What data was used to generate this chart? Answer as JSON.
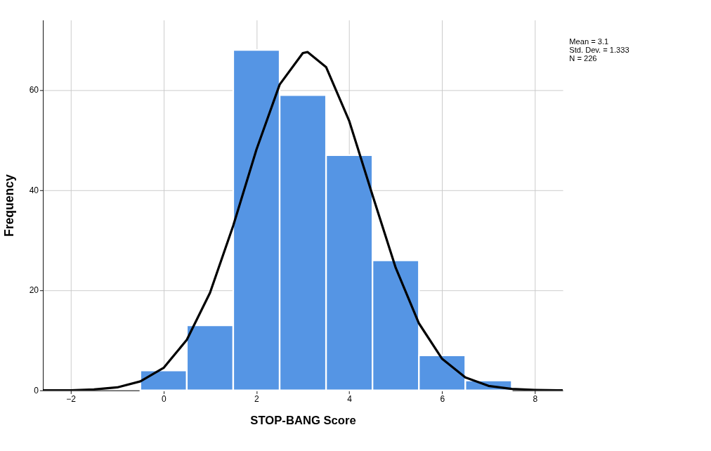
{
  "chart_data": {
    "type": "histogram",
    "xlabel": "STOP-BANG Score",
    "ylabel": "Frequency",
    "bins": [
      -0.5,
      0.5,
      1.5,
      2.5,
      3.5,
      4.5,
      5.5,
      6.5,
      7.5
    ],
    "values": [
      4,
      13,
      68,
      59,
      47,
      26,
      7,
      2
    ],
    "color": "#5595e4",
    "series": [
      {
        "type": "line",
        "color": "#000000",
        "x": [
          -2.6,
          -2.5,
          -2,
          -1.5,
          -1,
          -0.5,
          0,
          0.5,
          1,
          1.5,
          2,
          2.5,
          3,
          3.1,
          3.5,
          4,
          4.5,
          5,
          5.5,
          6,
          6.5,
          7,
          7.5,
          8,
          8.5,
          8.6
        ],
        "values": [
          0,
          0,
          0,
          0.2,
          0.6,
          1.8,
          4.5,
          10.1,
          19.5,
          32.9,
          48.1,
          61.1,
          67.4,
          67.6,
          64.6,
          53.8,
          39.0,
          24.5,
          13.4,
          6.3,
          2.6,
          0.9,
          0.3,
          0.1,
          0,
          0
        ]
      }
    ],
    "xlim": [
      -2.6,
      8.6
    ],
    "xticks": [
      -2,
      0,
      2,
      4,
      6,
      8
    ],
    "ylim": [
      0,
      74
    ],
    "yticks": [
      0,
      20,
      40,
      60
    ],
    "grid": true,
    "annotations": [
      "Mean = 3.1",
      "Std. Dev. = 1.333",
      "N = 226"
    ]
  }
}
